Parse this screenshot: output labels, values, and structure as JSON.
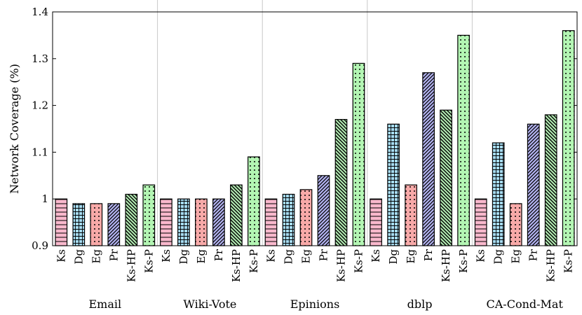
{
  "chart_data": {
    "type": "bar",
    "title": "",
    "xlabel": "",
    "ylabel": "Network Coverage (%)",
    "ylim": [
      0.9,
      1.4
    ],
    "yticks": [
      0.9,
      1,
      1.1,
      1.2,
      1.3,
      1.4
    ],
    "ytick_labels": [
      "0.9",
      "1",
      "1.1",
      "1.2",
      "1.3",
      "1.4"
    ],
    "grid": false,
    "categories": [
      "Email",
      "Wiki-Vote",
      "Epinions",
      "dblp",
      "CA-Cond-Mat"
    ],
    "series": [
      {
        "name": "Ks",
        "color": "#f9b8cc",
        "pattern": "horizontal-lines",
        "values": [
          1.0,
          1.0,
          1.0,
          1.0,
          1.0
        ]
      },
      {
        "name": "Dg",
        "color": "#a7dcf2",
        "pattern": "grid",
        "values": [
          0.99,
          1.0,
          1.01,
          1.16,
          1.12
        ]
      },
      {
        "name": "Eg",
        "color": "#f7a9a8",
        "pattern": "dots",
        "values": [
          0.99,
          1.0,
          1.02,
          1.03,
          0.99
        ]
      },
      {
        "name": "Pr",
        "color": "#b3b3f0",
        "pattern": "north-east-lines",
        "values": [
          0.99,
          1.0,
          1.05,
          1.27,
          1.16
        ]
      },
      {
        "name": "Ks-HP",
        "color": "#b3ecb3",
        "pattern": "north-west-lines",
        "values": [
          1.01,
          1.03,
          1.17,
          1.19,
          1.18
        ]
      },
      {
        "name": "Ks-P",
        "color": "#b3f5b3",
        "pattern": "dense-dots",
        "values": [
          1.03,
          1.09,
          1.29,
          1.35,
          1.36
        ]
      }
    ]
  }
}
